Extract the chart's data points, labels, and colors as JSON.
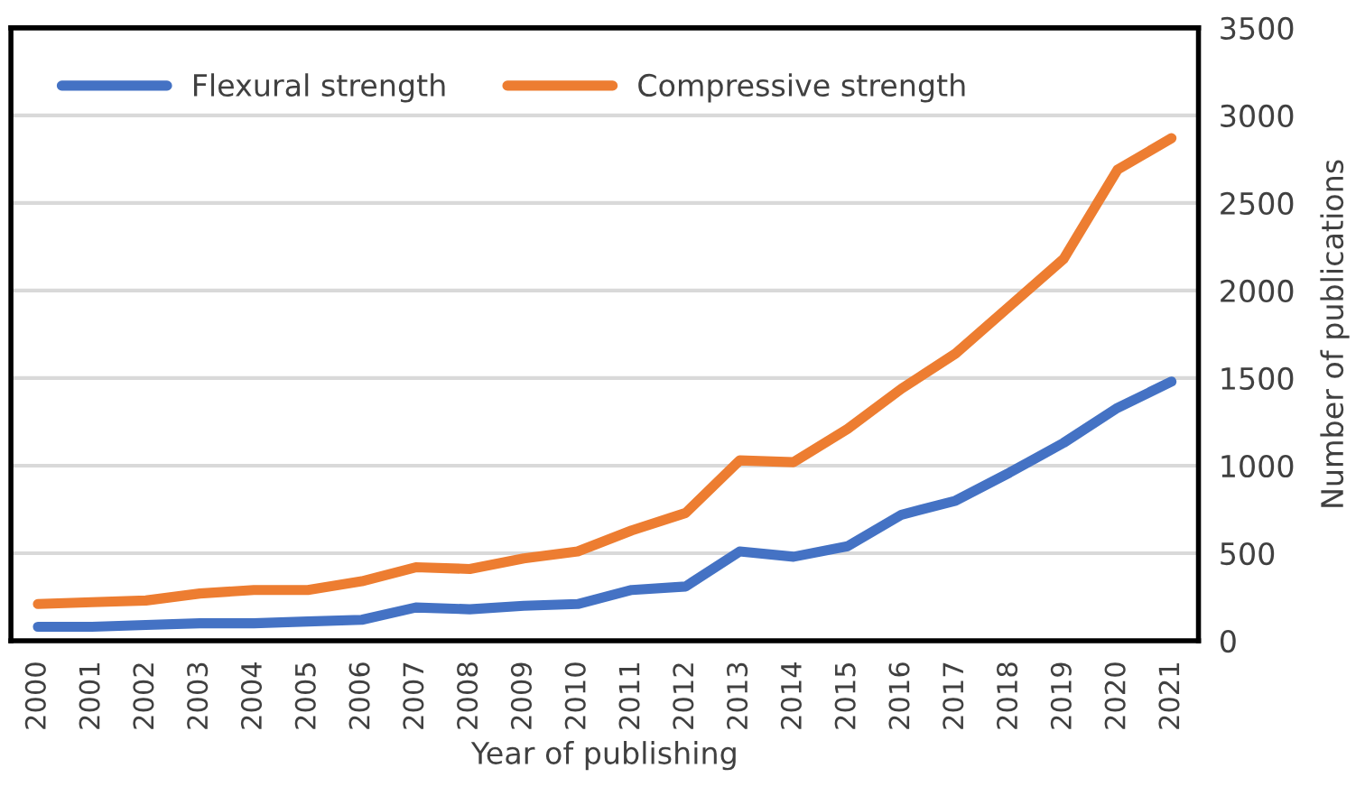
{
  "chart_data": {
    "type": "line",
    "xlabel": "Year of publishing",
    "ylabel": "Number of publications",
    "categories": [
      "2000",
      "2001",
      "2002",
      "2003",
      "2004",
      "2005",
      "2006",
      "2007",
      "2008",
      "2009",
      "2010",
      "2011",
      "2012",
      "2013",
      "2014",
      "2015",
      "2016",
      "2017",
      "2018",
      "2019",
      "2020",
      "2021"
    ],
    "series": [
      {
        "name": "Flexural strength",
        "color": "#4472c4",
        "values": [
          80,
          80,
          90,
          100,
          100,
          110,
          120,
          190,
          180,
          200,
          210,
          290,
          310,
          510,
          480,
          540,
          720,
          800,
          960,
          1130,
          1330,
          1480
        ]
      },
      {
        "name": "Compressive strength",
        "color": "#ed7d31",
        "values": [
          210,
          220,
          230,
          270,
          290,
          290,
          340,
          420,
          410,
          470,
          510,
          630,
          730,
          1030,
          1020,
          1210,
          1440,
          1640,
          1910,
          2180,
          2690,
          2870
        ]
      }
    ],
    "ylim": [
      0,
      3500
    ],
    "yticks": [
      0,
      500,
      1000,
      1500,
      2000,
      2500,
      3000,
      3500
    ],
    "grid": "y",
    "legend": "top left",
    "line_style": "solid",
    "marker": "none"
  }
}
